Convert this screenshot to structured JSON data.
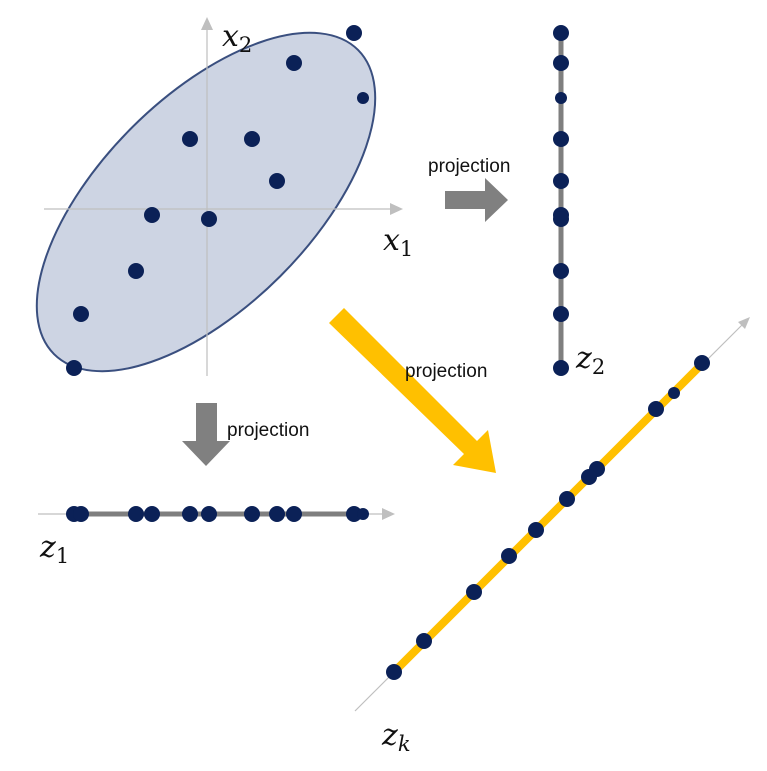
{
  "colors": {
    "point": "#0b2157",
    "ellipse_fill": "#cdd4e3",
    "ellipse_stroke": "#3a4f7f",
    "axis": "#bfbfbf",
    "gray_arrow": "#808080",
    "gray_line": "#7f7f7f",
    "gold": "#ffc000"
  },
  "labels": {
    "x1": {
      "base": "x",
      "sub": "1"
    },
    "x2": {
      "base": "x",
      "sub": "2"
    },
    "z1": {
      "base": "z",
      "sub": "1"
    },
    "z2": {
      "base": "z",
      "sub": "2"
    },
    "zk": {
      "base": "z",
      "sub": "k"
    },
    "projection_right": "projection",
    "projection_down": "projection",
    "projection_diag": "projection"
  }
}
